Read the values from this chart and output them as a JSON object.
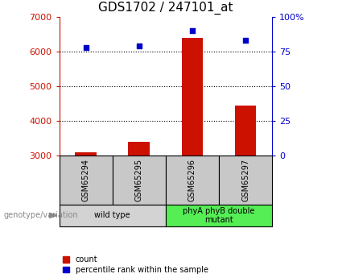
{
  "title": "GDS1702 / 247101_at",
  "samples": [
    "GSM65294",
    "GSM65295",
    "GSM65296",
    "GSM65297"
  ],
  "counts": [
    3100,
    3400,
    6400,
    4450
  ],
  "percentiles": [
    78,
    79,
    90,
    83
  ],
  "ylim_left": [
    3000,
    7000
  ],
  "ylim_right": [
    0,
    100
  ],
  "yticks_left": [
    3000,
    4000,
    5000,
    6000,
    7000
  ],
  "yticks_right": [
    0,
    25,
    50,
    75,
    100
  ],
  "bar_color": "#cc1100",
  "dot_color": "#0000cc",
  "groups": [
    {
      "label": "wild type",
      "indices": [
        0,
        1
      ],
      "color": "#d3d3d3"
    },
    {
      "label": "phyA phyB double\nmutant",
      "indices": [
        2,
        3
      ],
      "color": "#55ee55"
    }
  ],
  "legend_count_label": "count",
  "legend_percentile_label": "percentile rank within the sample",
  "genotype_label": "genotype/variation",
  "title_fontsize": 11
}
